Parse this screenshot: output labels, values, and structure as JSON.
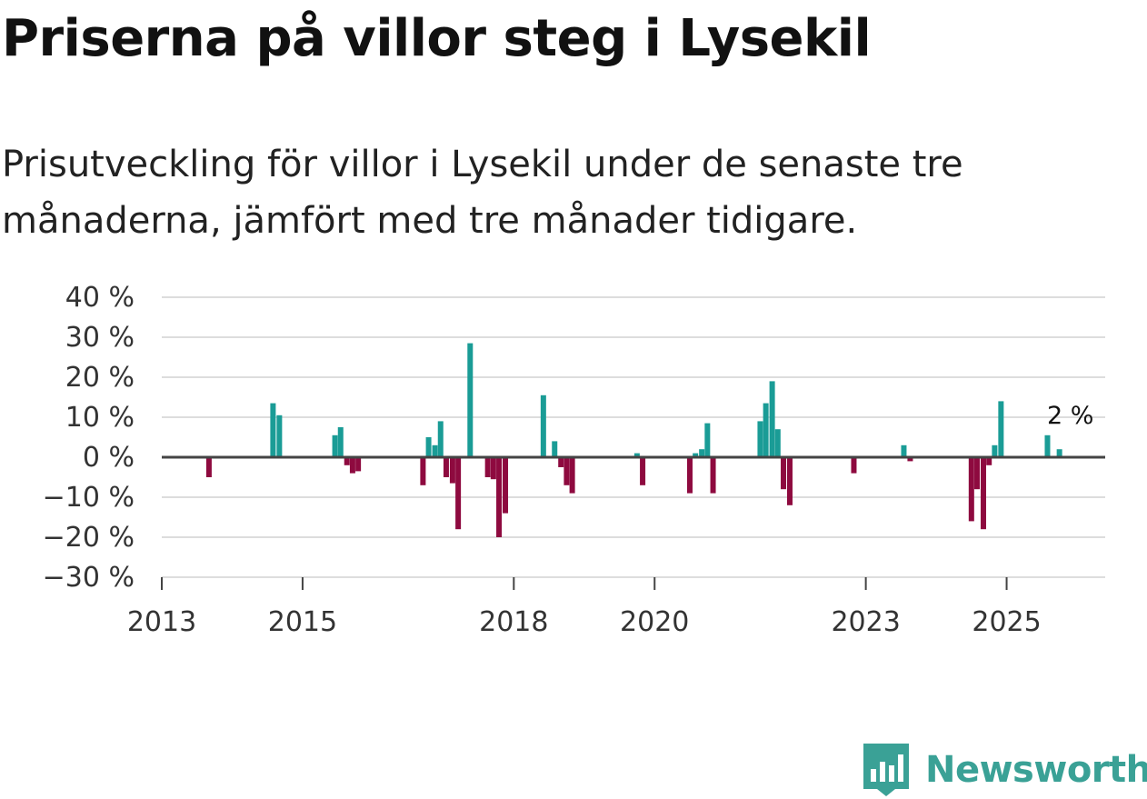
{
  "title": "Priserna på villor steg i Lysekil",
  "subtitle": "Prisutveckling för villor i Lysekil under de senaste tre månaderna, jämfört med tre månader tidigare.",
  "colors": {
    "positive": "#1a9c96",
    "negative": "#8e0a3f",
    "grid": "#dddddd",
    "zero": "#444444",
    "brand": "#3aa196"
  },
  "brand": {
    "name": "Newsworthy",
    "icon": "newsworthy-logo-icon"
  },
  "chart_data": {
    "type": "bar",
    "title": "Priserna på villor steg i Lysekil",
    "xlabel": "",
    "ylabel": "",
    "ylim": [
      -30,
      40
    ],
    "y_ticks": [
      40,
      30,
      20,
      10,
      0,
      -10,
      -20,
      -30
    ],
    "y_tick_labels": [
      "40 %",
      "30 %",
      "20 %",
      "10 %",
      "0 %",
      "−10 %",
      "−20 %",
      "−30 %"
    ],
    "xlim": [
      2013.0,
      2026.4
    ],
    "x_ticks": [
      2013,
      2015,
      2018,
      2020,
      2023,
      2025
    ],
    "x_tick_labels": [
      "2013",
      "2015",
      "2018",
      "2020",
      "2023",
      "2025"
    ],
    "annotation": {
      "text": "2 %",
      "x": 2025.75,
      "value": 2
    },
    "series": [
      {
        "name": "Prisutveckling",
        "x": [
          2013.67,
          2014.58,
          2014.67,
          2015.46,
          2015.54,
          2015.63,
          2015.71,
          2015.79,
          2016.71,
          2016.79,
          2016.88,
          2016.96,
          2017.04,
          2017.13,
          2017.21,
          2017.38,
          2017.63,
          2017.71,
          2017.79,
          2017.88,
          2018.42,
          2018.58,
          2018.67,
          2018.75,
          2018.83,
          2019.75,
          2019.83,
          2020.5,
          2020.58,
          2020.67,
          2020.75,
          2020.83,
          2021.5,
          2021.58,
          2021.67,
          2021.75,
          2021.83,
          2021.92,
          2022.83,
          2023.54,
          2023.63,
          2024.5,
          2024.58,
          2024.67,
          2024.75,
          2024.83,
          2024.92,
          2025.58,
          2025.75
        ],
        "values": [
          -5,
          13.5,
          10.5,
          5.5,
          7.5,
          -2,
          -4,
          -3.5,
          -7,
          5,
          3,
          9,
          -5,
          -6.5,
          -18,
          28.5,
          -5,
          -5.5,
          -20,
          -14,
          15.5,
          4,
          -2.5,
          -7,
          -9,
          1,
          -7,
          -9,
          1,
          2,
          8.5,
          -9,
          9,
          13.5,
          19,
          7,
          -8,
          -12,
          -4,
          3,
          -1,
          -16,
          -8,
          -18,
          -2,
          3,
          14,
          5.5,
          2
        ]
      }
    ]
  }
}
